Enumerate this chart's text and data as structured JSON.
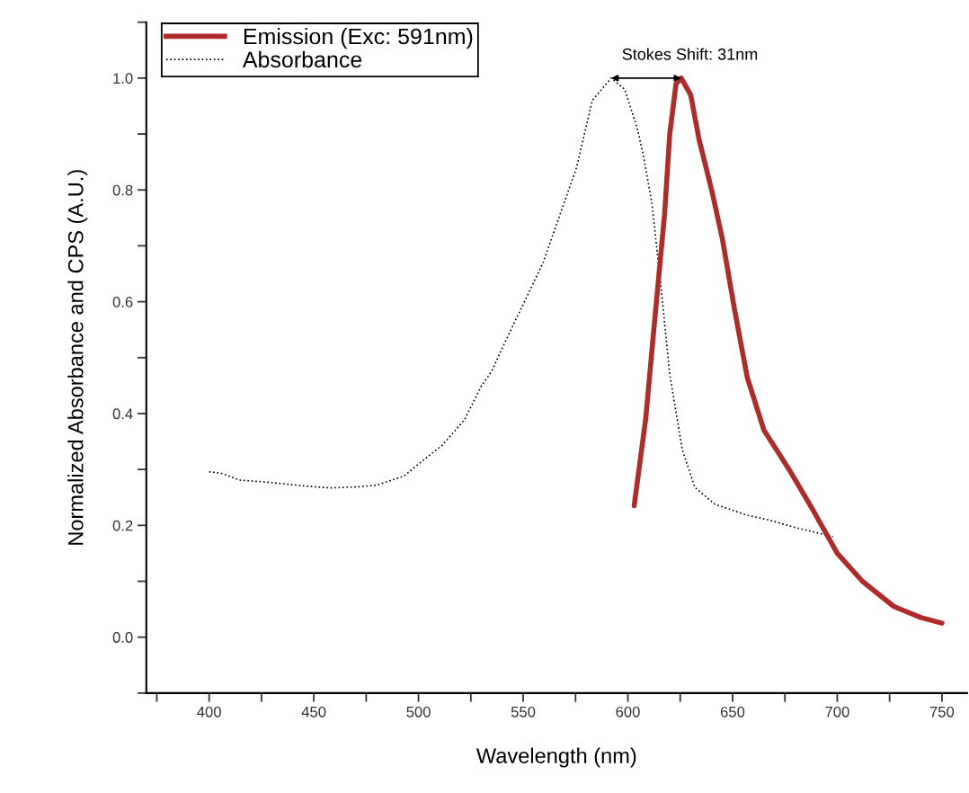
{
  "chart_data": {
    "type": "line",
    "xlabel": "Wavelength (nm)",
    "ylabel": "Normalized Absorbance and CPS (A.U.)",
    "xlim": [
      370,
      762
    ],
    "ylim": [
      -0.1,
      1.1
    ],
    "xticks": [
      {
        "value": 375,
        "label": null
      },
      400,
      {
        "value": 425,
        "label": null
      },
      450,
      {
        "value": 475,
        "label": null
      },
      500,
      {
        "value": 525,
        "label": null
      },
      550,
      {
        "value": 575,
        "label": null
      },
      600,
      {
        "value": 625,
        "label": null
      },
      650,
      {
        "value": 675,
        "label": null
      },
      700,
      {
        "value": 725,
        "label": null
      },
      750
    ],
    "yticks": [
      {
        "value": -0.1,
        "label": null
      },
      {
        "value": 0.0,
        "label": "0.0"
      },
      {
        "value": 0.1,
        "label": null
      },
      {
        "value": 0.2,
        "label": "0.2"
      },
      {
        "value": 0.3,
        "label": null
      },
      {
        "value": 0.4,
        "label": "0.4"
      },
      {
        "value": 0.5,
        "label": null
      },
      {
        "value": 0.6,
        "label": "0.6"
      },
      {
        "value": 0.7,
        "label": null
      },
      {
        "value": 0.8,
        "label": "0.8"
      },
      {
        "value": 0.9,
        "label": null
      },
      {
        "value": 1.0,
        "label": "1.0"
      },
      {
        "value": 1.1,
        "label": null
      }
    ],
    "grid": false,
    "legend": "top left",
    "annotations": [
      "Stokes Shift: 31nm"
    ],
    "series": [
      {
        "name": "Emission (Exc: 591nm)",
        "color": "#b02a2a",
        "line_style": "solid",
        "x": [
          603,
          608.5,
          613,
          617.5,
          620,
          623,
          625.5,
          630,
          634,
          640,
          645,
          651,
          657,
          665,
          677,
          688,
          700,
          712,
          727,
          740,
          750
        ],
        "values": [
          0.235,
          0.39,
          0.575,
          0.755,
          0.9,
          0.99,
          1.0,
          0.97,
          0.89,
          0.8,
          0.715,
          0.585,
          0.465,
          0.37,
          0.3,
          0.23,
          0.15,
          0.1,
          0.055,
          0.035,
          0.025
        ]
      },
      {
        "name": "Absorbance",
        "color": "#000000",
        "line_style": "dotted",
        "x": [
          400,
          406,
          414.5,
          428.5,
          450,
          458,
          471.5,
          480,
          493,
          498.5,
          511.5,
          522,
          530,
          535,
          541.5,
          559.5,
          575.5,
          583,
          592,
          598.5,
          604.5,
          607.5,
          611.5,
          616,
          620,
          626,
          632,
          641.5,
          657,
          667,
          679,
          698
        ],
        "values": [
          0.296,
          0.293,
          0.281,
          0.277,
          0.269,
          0.267,
          0.269,
          0.272,
          0.288,
          0.305,
          0.344,
          0.389,
          0.449,
          0.476,
          0.529,
          0.67,
          0.84,
          0.96,
          1.0,
          0.98,
          0.91,
          0.86,
          0.775,
          0.62,
          0.47,
          0.335,
          0.268,
          0.238,
          0.218,
          0.21,
          0.197,
          0.18
        ]
      }
    ]
  }
}
